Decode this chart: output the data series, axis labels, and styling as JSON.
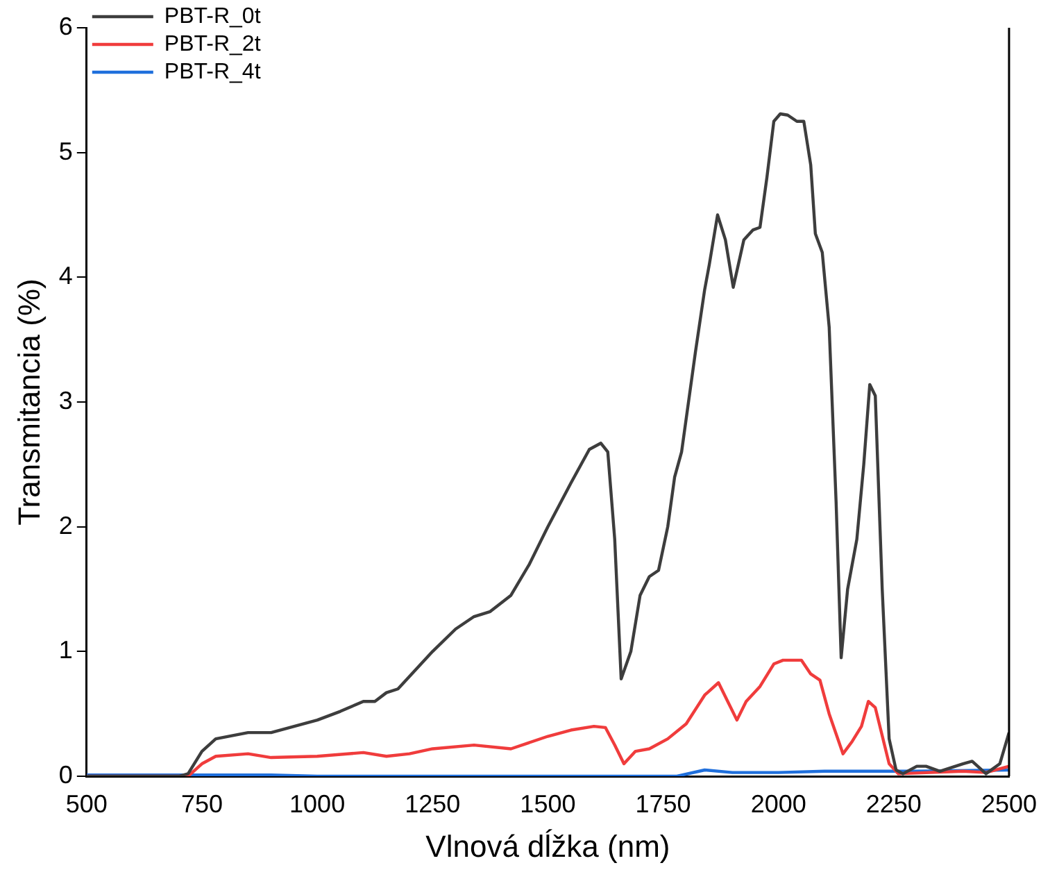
{
  "chart_data": {
    "type": "line",
    "xlabel": "Vlnová dĺžka (nm)",
    "ylabel": "Transmitancia (%)",
    "xlim": [
      500,
      2500
    ],
    "xticks": [
      500,
      750,
      1000,
      1250,
      1500,
      1750,
      2000,
      2250,
      2500
    ],
    "ylim": [
      0,
      6
    ],
    "yticks": [
      0,
      1,
      2,
      3,
      4,
      5,
      6
    ],
    "grid": false,
    "legend": "top left",
    "marker": "none",
    "line_style": "solid",
    "series": [
      {
        "name": "PBT-R_0t",
        "color": "#3d3d3d",
        "x": [
          500,
          700,
          720,
          750,
          780,
          850,
          900,
          1000,
          1050,
          1100,
          1125,
          1150,
          1175,
          1200,
          1250,
          1300,
          1340,
          1375,
          1420,
          1460,
          1500,
          1550,
          1590,
          1615,
          1630,
          1645,
          1659,
          1680,
          1700,
          1720,
          1740,
          1760,
          1775,
          1790,
          1820,
          1840,
          1850,
          1868,
          1885,
          1902,
          1925,
          1945,
          1960,
          1975,
          1990,
          2004,
          2020,
          2040,
          2055,
          2070,
          2080,
          2095,
          2110,
          2125,
          2136,
          2150,
          2170,
          2185,
          2198,
          2210,
          2225,
          2240,
          2255,
          2270,
          2300,
          2320,
          2350,
          2400,
          2420,
          2450,
          2480,
          2500
        ],
        "values": [
          0,
          0,
          0.02,
          0.2,
          0.3,
          0.35,
          0.35,
          0.45,
          0.52,
          0.6,
          0.6,
          0.67,
          0.7,
          0.8,
          1.0,
          1.18,
          1.28,
          1.32,
          1.45,
          1.7,
          2.0,
          2.35,
          2.62,
          2.67,
          2.6,
          1.9,
          0.78,
          1.0,
          1.45,
          1.6,
          1.65,
          2.0,
          2.4,
          2.6,
          3.4,
          3.9,
          4.1,
          4.5,
          4.3,
          3.92,
          4.3,
          4.38,
          4.4,
          4.8,
          5.25,
          5.31,
          5.3,
          5.25,
          5.25,
          4.9,
          4.35,
          4.2,
          3.6,
          2.2,
          0.95,
          1.5,
          1.9,
          2.5,
          3.14,
          3.05,
          1.5,
          0.3,
          0.05,
          0.02,
          0.08,
          0.08,
          0.04,
          0.1,
          0.12,
          0.02,
          0.1,
          0.35
        ]
      },
      {
        "name": "PBT-R_2t",
        "color": "#f03c3c",
        "x": [
          500,
          720,
          750,
          780,
          850,
          900,
          1000,
          1100,
          1150,
          1200,
          1250,
          1340,
          1420,
          1500,
          1550,
          1600,
          1625,
          1645,
          1665,
          1690,
          1720,
          1760,
          1800,
          1840,
          1870,
          1890,
          1910,
          1930,
          1960,
          1990,
          2010,
          2050,
          2070,
          2090,
          2110,
          2140,
          2160,
          2180,
          2195,
          2210,
          2240,
          2260,
          2400,
          2450,
          2500
        ],
        "values": [
          0,
          0,
          0.1,
          0.16,
          0.18,
          0.15,
          0.16,
          0.19,
          0.16,
          0.18,
          0.22,
          0.25,
          0.22,
          0.32,
          0.37,
          0.4,
          0.39,
          0.25,
          0.1,
          0.2,
          0.22,
          0.3,
          0.42,
          0.65,
          0.75,
          0.6,
          0.45,
          0.6,
          0.72,
          0.9,
          0.93,
          0.93,
          0.82,
          0.77,
          0.5,
          0.18,
          0.28,
          0.4,
          0.6,
          0.55,
          0.1,
          0.02,
          0.04,
          0.03,
          0.08
        ]
      },
      {
        "name": "PBT-R_4t",
        "color": "#1f6fdc",
        "x": [
          500,
          900,
          1000,
          1780,
          1840,
          1900,
          2000,
          2100,
          2200,
          2300,
          2500
        ],
        "values": [
          0.01,
          0.01,
          0,
          0,
          0.05,
          0.03,
          0.03,
          0.04,
          0.04,
          0.04,
          0.05
        ]
      }
    ]
  }
}
